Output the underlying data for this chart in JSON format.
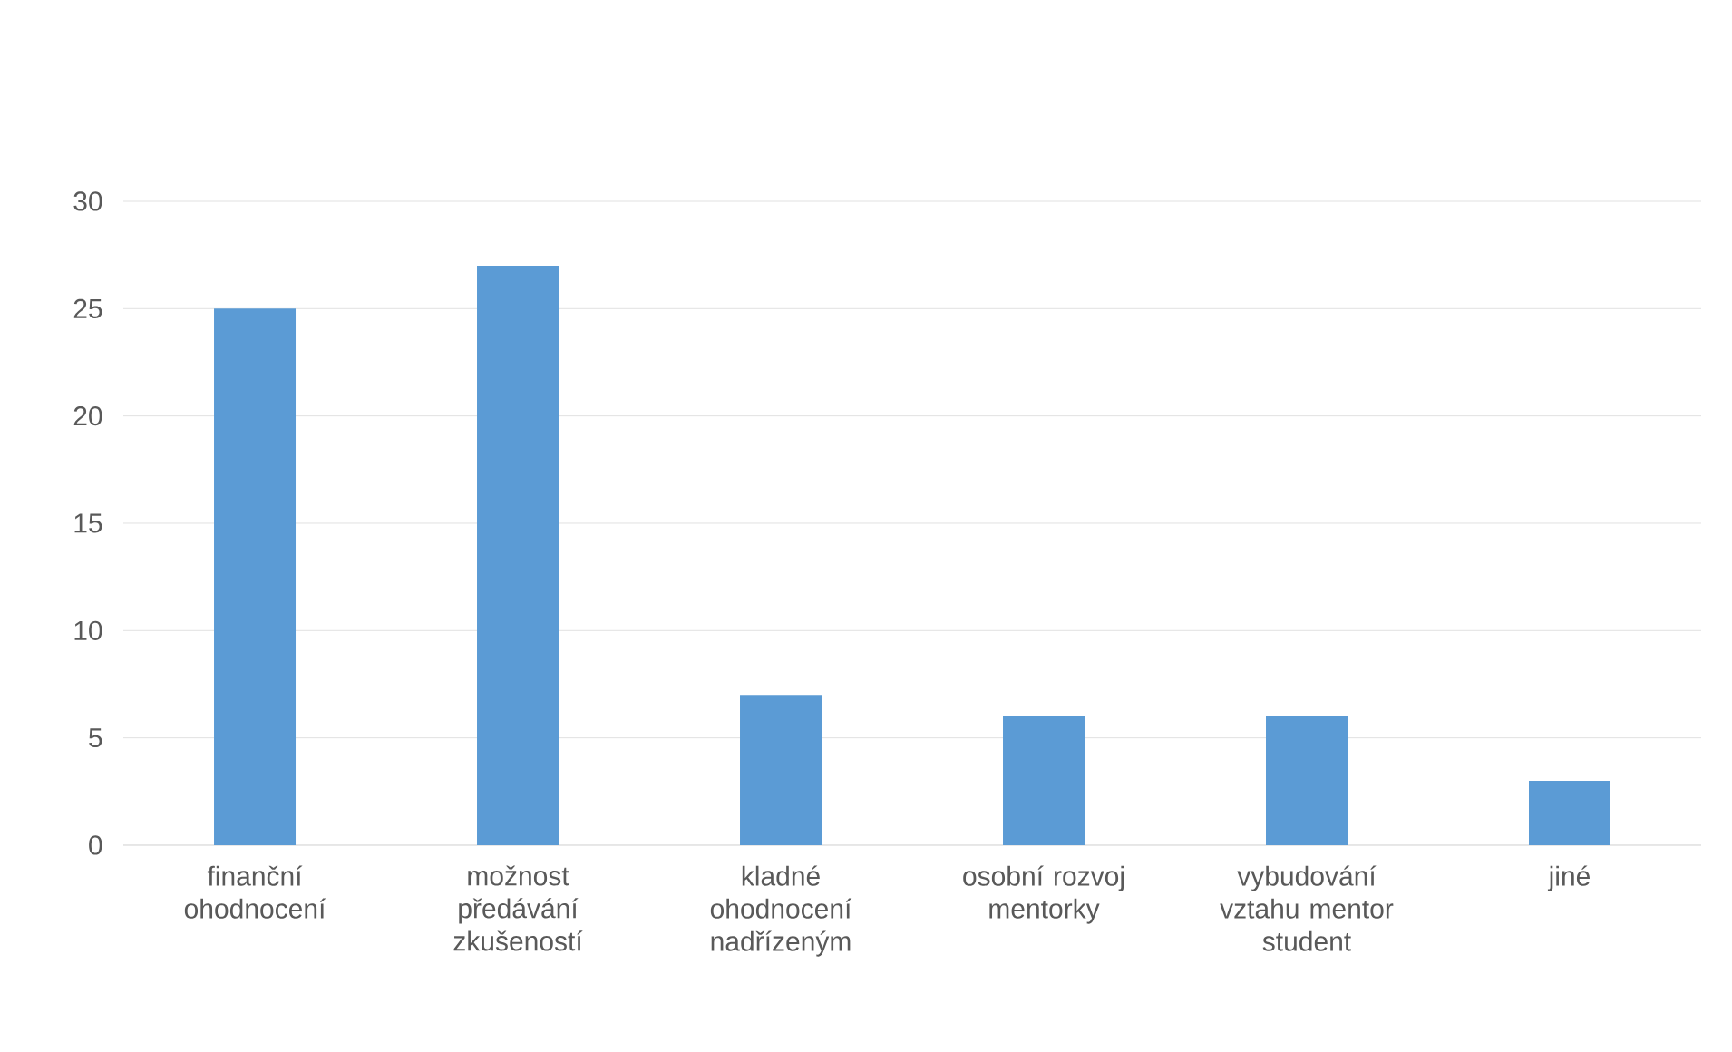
{
  "chart_data": {
    "type": "bar",
    "categories": [
      "finanční ohodnocení",
      "možnost předávání zkušeností",
      "kladné ohodnocení nadřízeným",
      "osobní rozvoj mentorky",
      "vybudování vztahu mentor student",
      "jiné"
    ],
    "values": [
      25,
      27,
      7,
      6,
      6,
      3
    ],
    "color": "#5b9bd5",
    "ylim": [
      0,
      30
    ],
    "yticks": [
      0,
      5,
      10,
      15,
      20,
      25,
      30
    ],
    "grid": "y"
  }
}
